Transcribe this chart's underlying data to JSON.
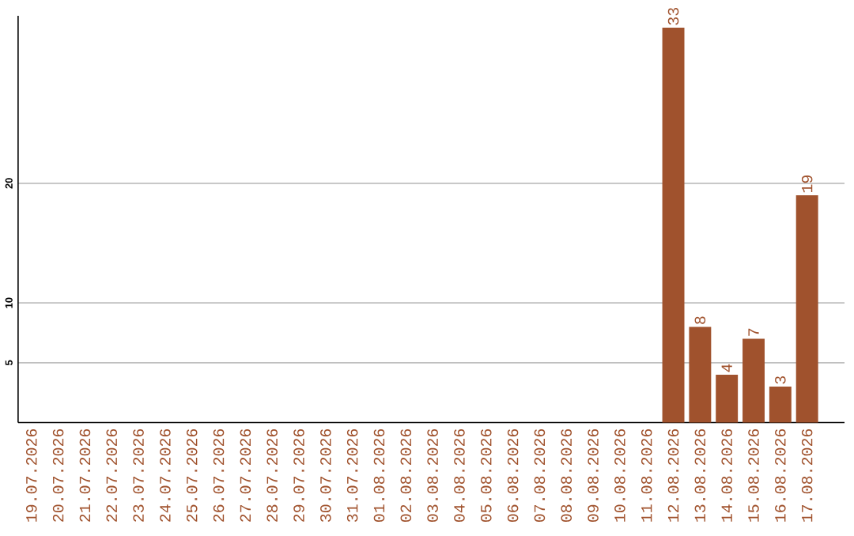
{
  "chart_data": {
    "type": "bar",
    "categories": [
      "19.07.2026",
      "20.07.2026",
      "21.07.2026",
      "22.07.2026",
      "23.07.2026",
      "24.07.2026",
      "25.07.2026",
      "26.07.2026",
      "27.07.2026",
      "28.07.2026",
      "29.07.2026",
      "30.07.2026",
      "31.07.2026",
      "01.08.2026",
      "02.08.2026",
      "03.08.2026",
      "04.08.2026",
      "05.08.2026",
      "06.08.2026",
      "07.08.2026",
      "08.08.2026",
      "09.08.2026",
      "10.08.2026",
      "11.08.2026",
      "12.08.2026",
      "13.08.2026",
      "14.08.2026",
      "15.08.2026",
      "16.08.2026",
      "17.08.2026"
    ],
    "values": [
      0,
      0,
      0,
      0,
      0,
      0,
      0,
      0,
      0,
      0,
      0,
      0,
      0,
      0,
      0,
      0,
      0,
      0,
      0,
      0,
      0,
      0,
      0,
      0,
      33,
      8,
      4,
      7,
      3,
      19
    ],
    "value_labels": [
      null,
      null,
      null,
      null,
      null,
      null,
      null,
      null,
      null,
      null,
      null,
      null,
      null,
      null,
      null,
      null,
      null,
      null,
      null,
      null,
      null,
      null,
      null,
      null,
      "33",
      "8",
      "4",
      "7",
      "3",
      "19"
    ],
    "color": "#a0522d",
    "ylim": [
      0,
      34
    ],
    "yticks": [
      5,
      10,
      20
    ],
    "grid": "y"
  }
}
